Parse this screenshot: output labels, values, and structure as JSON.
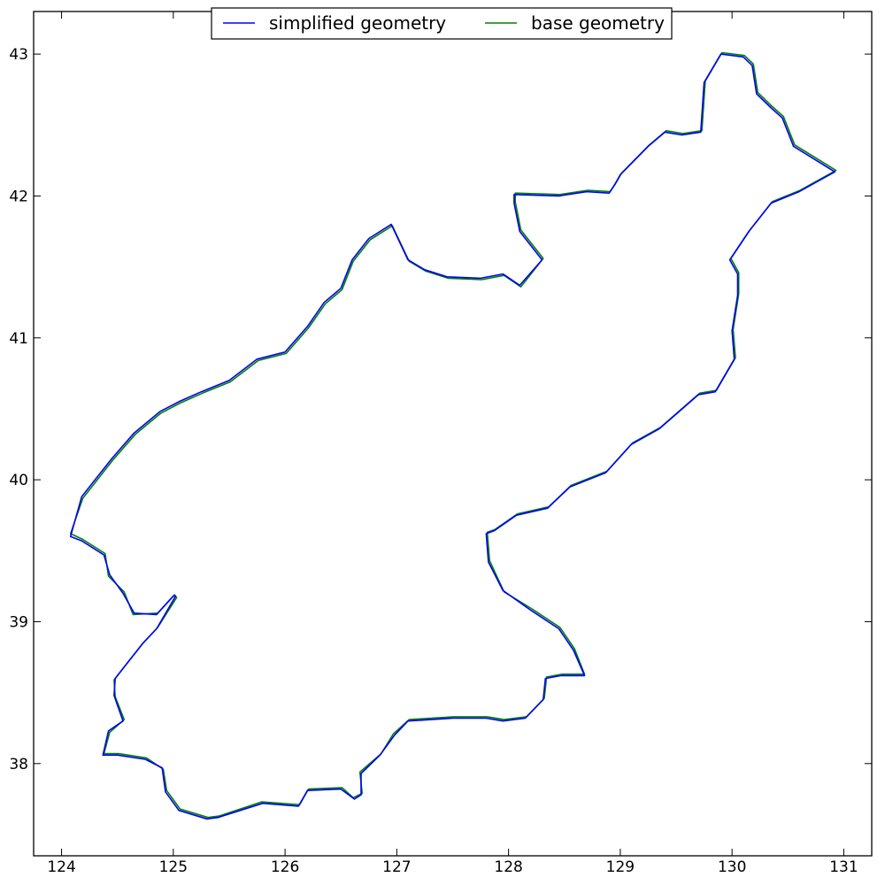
{
  "chart_data": {
    "type": "line",
    "title": "",
    "xlabel": "",
    "ylabel": "",
    "xlim": [
      123.75,
      131.25
    ],
    "ylim": [
      37.35,
      43.3
    ],
    "xticks": [
      124,
      125,
      126,
      127,
      128,
      129,
      130,
      131
    ],
    "yticks": [
      38,
      39,
      40,
      41,
      42,
      43
    ],
    "xtick_labels": [
      "124",
      "125",
      "126",
      "127",
      "128",
      "129",
      "130",
      "131"
    ],
    "ytick_labels": [
      "38",
      "39",
      "40",
      "41",
      "42",
      "43"
    ],
    "grid": false,
    "legend_position": "top-center",
    "series": [
      {
        "name": "simplified geometry",
        "color": "#0000ff",
        "points": [
          [
            124.08,
            39.6
          ],
          [
            124.18,
            39.57
          ],
          [
            124.38,
            39.47
          ],
          [
            124.43,
            39.33
          ],
          [
            124.55,
            39.2
          ],
          [
            124.65,
            39.06
          ],
          [
            124.85,
            39.05
          ],
          [
            125.0,
            39.18
          ],
          [
            125.02,
            39.18
          ],
          [
            124.85,
            38.95
          ],
          [
            124.73,
            38.85
          ],
          [
            124.58,
            38.7
          ],
          [
            124.48,
            38.6
          ],
          [
            124.47,
            38.48
          ],
          [
            124.55,
            38.3
          ],
          [
            124.42,
            38.23
          ],
          [
            124.37,
            38.06
          ],
          [
            124.5,
            38.06
          ],
          [
            124.75,
            38.03
          ],
          [
            124.9,
            37.97
          ],
          [
            124.93,
            37.8
          ],
          [
            125.05,
            37.67
          ],
          [
            125.3,
            37.61
          ],
          [
            125.4,
            37.62
          ],
          [
            125.8,
            37.72
          ],
          [
            126.12,
            37.7
          ],
          [
            126.2,
            37.81
          ],
          [
            126.5,
            37.82
          ],
          [
            126.62,
            37.75
          ],
          [
            126.68,
            37.78
          ],
          [
            126.68,
            37.93
          ],
          [
            126.85,
            38.06
          ],
          [
            126.98,
            38.2
          ],
          [
            127.1,
            38.3
          ],
          [
            127.5,
            38.32
          ],
          [
            127.8,
            38.32
          ],
          [
            127.95,
            38.3
          ],
          [
            128.15,
            38.32
          ],
          [
            128.31,
            38.45
          ],
          [
            128.33,
            38.6
          ],
          [
            128.47,
            38.62
          ],
          [
            128.68,
            38.62
          ],
          [
            128.58,
            38.8
          ],
          [
            128.45,
            38.95
          ],
          [
            128.2,
            39.08
          ],
          [
            127.95,
            39.22
          ],
          [
            127.82,
            39.42
          ],
          [
            127.8,
            39.62
          ],
          [
            127.87,
            39.64
          ],
          [
            128.07,
            39.75
          ],
          [
            128.35,
            39.8
          ],
          [
            128.55,
            39.95
          ],
          [
            128.87,
            40.05
          ],
          [
            129.1,
            40.25
          ],
          [
            129.35,
            40.36
          ],
          [
            129.7,
            40.6
          ],
          [
            129.85,
            40.62
          ],
          [
            130.02,
            40.85
          ],
          [
            130.0,
            41.05
          ],
          [
            130.05,
            41.3
          ],
          [
            130.05,
            41.45
          ],
          [
            129.98,
            41.55
          ],
          [
            130.15,
            41.75
          ],
          [
            130.35,
            41.95
          ],
          [
            130.6,
            42.03
          ],
          [
            130.92,
            42.17
          ],
          [
            130.55,
            42.35
          ],
          [
            130.45,
            42.55
          ],
          [
            130.35,
            42.62
          ],
          [
            130.22,
            42.72
          ],
          [
            130.18,
            42.92
          ],
          [
            130.1,
            42.98
          ],
          [
            129.9,
            43.0
          ],
          [
            129.75,
            42.8
          ],
          [
            129.72,
            42.45
          ],
          [
            129.55,
            42.43
          ],
          [
            129.4,
            42.45
          ],
          [
            129.25,
            42.35
          ],
          [
            129.0,
            42.15
          ],
          [
            128.95,
            42.08
          ],
          [
            128.9,
            42.02
          ],
          [
            128.7,
            42.03
          ],
          [
            128.45,
            42.0
          ],
          [
            128.05,
            42.01
          ],
          [
            128.05,
            41.95
          ],
          [
            128.1,
            41.75
          ],
          [
            128.3,
            41.55
          ],
          [
            128.1,
            41.37
          ],
          [
            127.95,
            41.45
          ],
          [
            127.75,
            41.42
          ],
          [
            127.45,
            41.43
          ],
          [
            127.25,
            41.48
          ],
          [
            127.1,
            41.55
          ],
          [
            126.95,
            41.8
          ],
          [
            126.75,
            41.7
          ],
          [
            126.6,
            41.55
          ],
          [
            126.5,
            41.35
          ],
          [
            126.35,
            41.25
          ],
          [
            126.2,
            41.08
          ],
          [
            126.0,
            40.9
          ],
          [
            125.75,
            40.85
          ],
          [
            125.5,
            40.7
          ],
          [
            125.25,
            40.62
          ],
          [
            125.05,
            40.55
          ],
          [
            124.88,
            40.48
          ],
          [
            124.65,
            40.33
          ],
          [
            124.45,
            40.15
          ],
          [
            124.3,
            40.0
          ],
          [
            124.18,
            39.88
          ],
          [
            124.08,
            39.6
          ]
        ]
      },
      {
        "name": "base geometry",
        "color": "#008000",
        "points": [
          [
            124.08,
            39.62
          ],
          [
            124.19,
            39.58
          ],
          [
            124.39,
            39.48
          ],
          [
            124.42,
            39.32
          ],
          [
            124.56,
            39.21
          ],
          [
            124.64,
            39.05
          ],
          [
            124.86,
            39.06
          ],
          [
            125.01,
            39.19
          ],
          [
            125.03,
            39.17
          ],
          [
            124.86,
            38.96
          ],
          [
            124.72,
            38.84
          ],
          [
            124.59,
            38.71
          ],
          [
            124.47,
            38.59
          ],
          [
            124.48,
            38.47
          ],
          [
            124.56,
            38.31
          ],
          [
            124.43,
            38.22
          ],
          [
            124.38,
            38.07
          ],
          [
            124.51,
            38.07
          ],
          [
            124.76,
            38.04
          ],
          [
            124.91,
            37.96
          ],
          [
            124.94,
            37.81
          ],
          [
            125.06,
            37.68
          ],
          [
            125.31,
            37.62
          ],
          [
            125.41,
            37.63
          ],
          [
            125.79,
            37.73
          ],
          [
            126.13,
            37.71
          ],
          [
            126.21,
            37.82
          ],
          [
            126.51,
            37.83
          ],
          [
            126.61,
            37.76
          ],
          [
            126.69,
            37.79
          ],
          [
            126.67,
            37.94
          ],
          [
            126.86,
            38.07
          ],
          [
            126.97,
            38.21
          ],
          [
            127.11,
            38.31
          ],
          [
            127.51,
            38.33
          ],
          [
            127.81,
            38.33
          ],
          [
            127.96,
            38.31
          ],
          [
            128.16,
            38.33
          ],
          [
            128.32,
            38.46
          ],
          [
            128.34,
            38.61
          ],
          [
            128.48,
            38.63
          ],
          [
            128.68,
            38.63
          ],
          [
            128.59,
            38.81
          ],
          [
            128.46,
            38.96
          ],
          [
            128.21,
            39.09
          ],
          [
            127.96,
            39.21
          ],
          [
            127.83,
            39.43
          ],
          [
            127.81,
            39.63
          ],
          [
            127.88,
            39.65
          ],
          [
            128.08,
            39.76
          ],
          [
            128.36,
            39.81
          ],
          [
            128.56,
            39.96
          ],
          [
            128.88,
            40.06
          ],
          [
            129.11,
            40.26
          ],
          [
            129.36,
            40.37
          ],
          [
            129.71,
            40.61
          ],
          [
            129.86,
            40.63
          ],
          [
            130.03,
            40.86
          ],
          [
            130.01,
            41.06
          ],
          [
            130.06,
            41.31
          ],
          [
            130.06,
            41.46
          ],
          [
            129.99,
            41.56
          ],
          [
            130.16,
            41.76
          ],
          [
            130.36,
            41.96
          ],
          [
            130.61,
            42.04
          ],
          [
            130.93,
            42.18
          ],
          [
            130.56,
            42.36
          ],
          [
            130.46,
            42.56
          ],
          [
            130.36,
            42.63
          ],
          [
            130.23,
            42.73
          ],
          [
            130.19,
            42.93
          ],
          [
            130.11,
            42.99
          ],
          [
            129.91,
            43.01
          ],
          [
            129.76,
            42.81
          ],
          [
            129.73,
            42.46
          ],
          [
            129.56,
            42.44
          ],
          [
            129.41,
            42.46
          ],
          [
            129.26,
            42.36
          ],
          [
            129.01,
            42.16
          ],
          [
            128.96,
            42.09
          ],
          [
            128.91,
            42.03
          ],
          [
            128.71,
            42.04
          ],
          [
            128.46,
            42.01
          ],
          [
            128.06,
            42.02
          ],
          [
            128.06,
            41.96
          ],
          [
            128.11,
            41.76
          ],
          [
            128.31,
            41.56
          ],
          [
            128.11,
            41.36
          ],
          [
            127.96,
            41.44
          ],
          [
            127.76,
            41.41
          ],
          [
            127.46,
            41.42
          ],
          [
            127.26,
            41.47
          ],
          [
            127.11,
            41.54
          ],
          [
            126.96,
            41.79
          ],
          [
            126.76,
            41.69
          ],
          [
            126.61,
            41.54
          ],
          [
            126.51,
            41.34
          ],
          [
            126.36,
            41.24
          ],
          [
            126.21,
            41.07
          ],
          [
            126.01,
            40.89
          ],
          [
            125.76,
            40.84
          ],
          [
            125.51,
            40.69
          ],
          [
            125.26,
            40.61
          ],
          [
            125.06,
            40.54
          ],
          [
            124.89,
            40.47
          ],
          [
            124.66,
            40.32
          ],
          [
            124.46,
            40.14
          ],
          [
            124.31,
            39.99
          ],
          [
            124.19,
            39.87
          ],
          [
            124.08,
            39.62
          ]
        ]
      }
    ]
  }
}
